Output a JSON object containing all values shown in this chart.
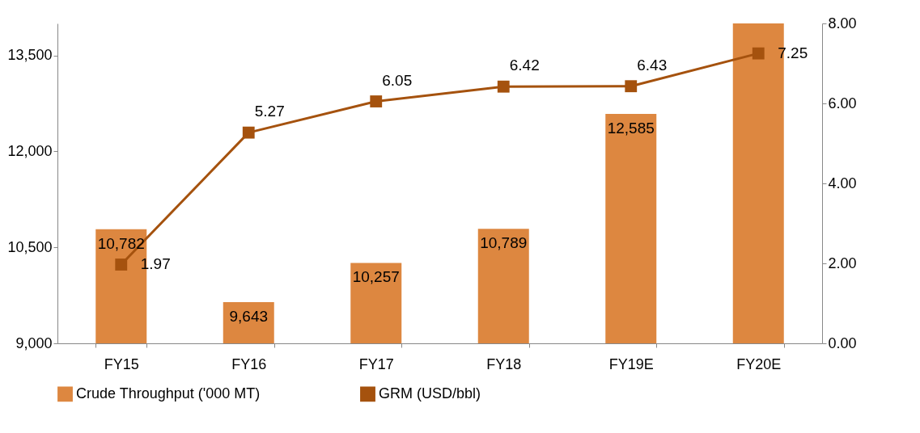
{
  "chart_data": {
    "type": "bar",
    "categories": [
      "FY15",
      "FY16",
      "FY17",
      "FY18",
      "FY19E",
      "FY20E"
    ],
    "series": [
      {
        "name": "Crude Throughput ('000 MT)",
        "color": "#dd8740",
        "values": [
          10782,
          9643,
          10257,
          10789,
          12585,
          14000
        ],
        "value_labels": [
          "10,782",
          "9,643",
          "10,257",
          "10,789",
          "12,585",
          null
        ]
      },
      {
        "name": "GRM (USD/bbl)",
        "type": "line",
        "axis": "y2",
        "color": "#a5520e",
        "marker": "square",
        "values": [
          1.97,
          5.27,
          6.05,
          6.42,
          6.43,
          7.25
        ],
        "value_labels": [
          "1.97",
          "5.27",
          "6.05",
          "6.42",
          "6.43",
          "7.25"
        ]
      }
    ],
    "ylim": [
      9000,
      14000
    ],
    "yticks": [
      {
        "value": 9000,
        "label": "9,000"
      },
      {
        "value": 10500,
        "label": "10,500"
      },
      {
        "value": 12000,
        "label": "12,000"
      },
      {
        "value": 13500,
        "label": "13,500"
      }
    ],
    "y2lim": [
      0,
      8
    ],
    "y2ticks": [
      {
        "value": 0,
        "label": "0.00"
      },
      {
        "value": 2,
        "label": "2.00"
      },
      {
        "value": 4,
        "label": "4.00"
      },
      {
        "value": 6,
        "label": "6.00"
      },
      {
        "value": 8,
        "label": "8.00"
      }
    ],
    "legend": "bottom",
    "grid": false
  }
}
